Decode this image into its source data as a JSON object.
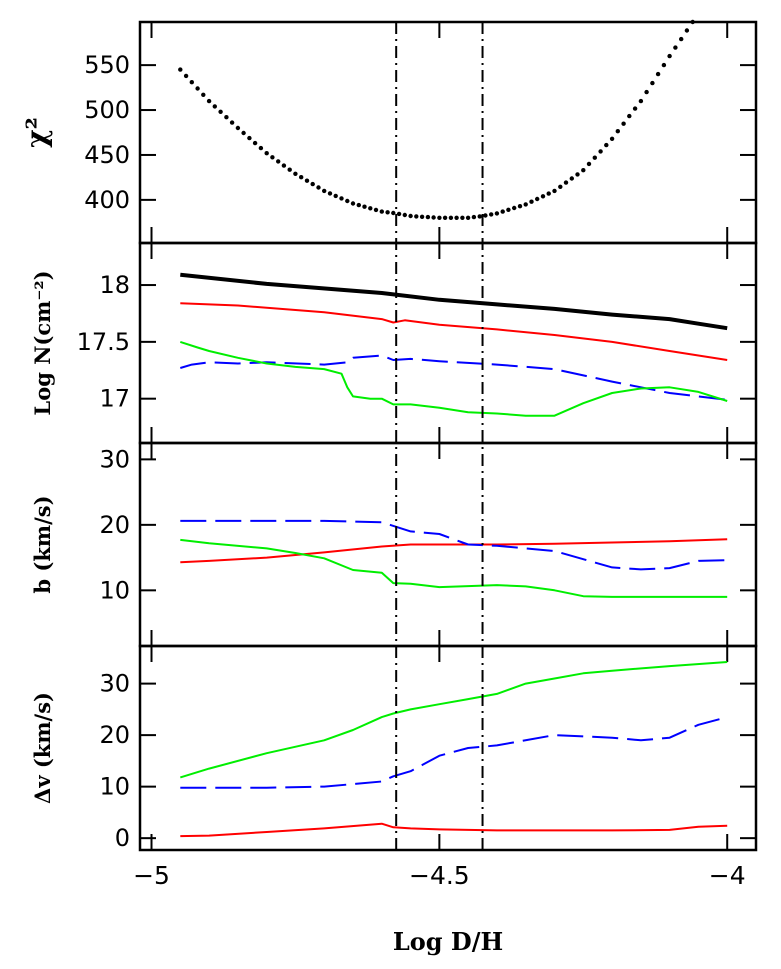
{
  "chart_data": {
    "type": "line",
    "xlabel": "Log D/H",
    "x_ticks": [
      -5,
      -4.5,
      -4
    ],
    "x_tick_labels": [
      "−5",
      "−4.5",
      "−4"
    ],
    "xlim": [
      -5.02,
      -3.95
    ],
    "vlines": [
      {
        "x": -4.575,
        "style": "dash-dot",
        "color": "#000000"
      },
      {
        "x": -4.425,
        "style": "dash-dot",
        "color": "#000000"
      }
    ],
    "panels": [
      {
        "id": "chi2",
        "ylabel": "χ²",
        "ylim": [
          352,
          598
        ],
        "y_ticks": [
          400,
          450,
          500,
          550
        ],
        "y_tick_labels": [
          "400",
          "450",
          "500",
          "550"
        ],
        "series": [
          {
            "style": "dotted",
            "color": "#000000",
            "dot_step": 0.01,
            "x": [
              -4.95,
              -4.9,
              -4.85,
              -4.8,
              -4.75,
              -4.7,
              -4.65,
              -4.6,
              -4.575,
              -4.55,
              -4.5,
              -4.45,
              -4.425,
              -4.4,
              -4.35,
              -4.3,
              -4.25,
              -4.2,
              -4.15,
              -4.1,
              -4.06
            ],
            "y": [
              545,
              510,
              480,
              452,
              429,
              410,
              396,
              387,
              385,
              382,
              380,
              380,
              382,
              385,
              395,
              410,
              433,
              468,
              510,
              560,
              598
            ]
          }
        ]
      },
      {
        "id": "logN",
        "ylabel": "Log N(cm⁻²)",
        "ylim": [
          16.61,
          18.37
        ],
        "y_ticks": [
          17,
          17.5,
          18
        ],
        "y_tick_labels": [
          "17",
          "17.5",
          "18"
        ],
        "series": [
          {
            "color": "#000000",
            "style": "solid",
            "width": 4,
            "x": [
              -4.95,
              -4.8,
              -4.6,
              -4.5,
              -4.4,
              -4.3,
              -4.2,
              -4.1,
              -4.05,
              -4.0
            ],
            "y": [
              18.09,
              18.01,
              17.93,
              17.87,
              17.83,
              17.79,
              17.74,
              17.7,
              17.66,
              17.62
            ]
          },
          {
            "color": "#ff0000",
            "style": "solid",
            "width": 2,
            "x": [
              -4.95,
              -4.85,
              -4.7,
              -4.6,
              -4.58,
              -4.56,
              -4.5,
              -4.4,
              -4.3,
              -4.2,
              -4.1,
              -4.0
            ],
            "y": [
              17.84,
              17.82,
              17.76,
              17.7,
              17.67,
              17.69,
              17.65,
              17.61,
              17.56,
              17.5,
              17.42,
              17.34
            ]
          },
          {
            "color": "#0000ff",
            "style": "dashed",
            "width": 2,
            "x": [
              -4.95,
              -4.93,
              -4.9,
              -4.85,
              -4.8,
              -4.7,
              -4.66,
              -4.65,
              -4.6,
              -4.58,
              -4.55,
              -4.5,
              -4.4,
              -4.3,
              -4.2,
              -4.1,
              -4.0
            ],
            "y": [
              17.27,
              17.3,
              17.32,
              17.31,
              17.32,
              17.3,
              17.32,
              17.36,
              17.38,
              17.34,
              17.35,
              17.33,
              17.3,
              17.26,
              17.15,
              17.05,
              16.99
            ]
          },
          {
            "color": "#00ee00",
            "style": "solid",
            "width": 2,
            "x": [
              -4.95,
              -4.92,
              -4.9,
              -4.85,
              -4.8,
              -4.75,
              -4.7,
              -4.67,
              -4.66,
              -4.65,
              -4.62,
              -4.6,
              -4.58,
              -4.55,
              -4.5,
              -4.45,
              -4.4,
              -4.35,
              -4.3,
              -4.25,
              -4.2,
              -4.15,
              -4.1,
              -4.05,
              -4.0
            ],
            "y": [
              17.5,
              17.45,
              17.42,
              17.36,
              17.31,
              17.28,
              17.26,
              17.22,
              17.1,
              17.02,
              17.0,
              17.0,
              16.95,
              16.95,
              16.92,
              16.88,
              16.87,
              16.85,
              16.85,
              16.96,
              17.05,
              17.09,
              17.1,
              17.06,
              16.98
            ]
          }
        ]
      },
      {
        "id": "b",
        "ylabel": "b (km/s)",
        "ylim": [
          1.5,
          32.5
        ],
        "y_ticks": [
          10,
          20,
          30
        ],
        "y_tick_labels": [
          "10",
          "20",
          "30"
        ],
        "series": [
          {
            "color": "#ff0000",
            "style": "solid",
            "width": 2,
            "x": [
              -4.95,
              -4.9,
              -4.8,
              -4.7,
              -4.6,
              -4.55,
              -4.5,
              -4.4,
              -4.3,
              -4.2,
              -4.1,
              -4.0
            ],
            "y": [
              14.3,
              14.5,
              15.0,
              15.8,
              16.7,
              17.0,
              17.0,
              17.0,
              17.1,
              17.3,
              17.5,
              17.8
            ]
          },
          {
            "color": "#0000ff",
            "style": "dashed",
            "width": 2,
            "x": [
              -4.95,
              -4.9,
              -4.8,
              -4.7,
              -4.6,
              -4.55,
              -4.5,
              -4.45,
              -4.4,
              -4.3,
              -4.2,
              -4.15,
              -4.1,
              -4.05,
              -4.0
            ],
            "y": [
              20.6,
              20.6,
              20.6,
              20.6,
              20.4,
              19.0,
              18.6,
              17.0,
              16.8,
              16.0,
              13.5,
              13.2,
              13.4,
              14.5,
              14.6
            ]
          },
          {
            "color": "#00ee00",
            "style": "solid",
            "width": 2,
            "x": [
              -4.95,
              -4.9,
              -4.8,
              -4.75,
              -4.7,
              -4.65,
              -4.6,
              -4.58,
              -4.55,
              -4.5,
              -4.4,
              -4.35,
              -4.3,
              -4.25,
              -4.2,
              -4.1,
              -4.0
            ],
            "y": [
              17.7,
              17.2,
              16.4,
              15.7,
              14.9,
              13.1,
              12.7,
              11.1,
              11.0,
              10.5,
              10.8,
              10.6,
              10.0,
              9.1,
              9.0,
              9.0,
              9.0
            ]
          }
        ]
      },
      {
        "id": "dv",
        "ylabel": "Δv (km/s)",
        "ylim": [
          -2.3,
          37.3
        ],
        "y_ticks": [
          0,
          10,
          20,
          30
        ],
        "y_tick_labels": [
          "0",
          "10",
          "20",
          "30"
        ],
        "series": [
          {
            "color": "#ff0000",
            "style": "solid",
            "width": 2,
            "x": [
              -4.95,
              -4.9,
              -4.8,
              -4.7,
              -4.6,
              -4.58,
              -4.55,
              -4.5,
              -4.4,
              -4.3,
              -4.2,
              -4.1,
              -4.05,
              -4.0
            ],
            "y": [
              0.4,
              0.5,
              1.2,
              1.9,
              2.8,
              2.1,
              1.9,
              1.7,
              1.5,
              1.5,
              1.5,
              1.6,
              2.2,
              2.4
            ]
          },
          {
            "color": "#0000ff",
            "style": "dashed",
            "width": 2,
            "x": [
              -4.95,
              -4.9,
              -4.8,
              -4.7,
              -4.65,
              -4.6,
              -4.58,
              -4.55,
              -4.5,
              -4.45,
              -4.4,
              -4.3,
              -4.2,
              -4.15,
              -4.1,
              -4.05,
              -4.0
            ],
            "y": [
              9.8,
              9.8,
              9.8,
              10.0,
              10.5,
              11.0,
              12.0,
              13.0,
              16.0,
              17.5,
              18.0,
              20.0,
              19.5,
              19.0,
              19.5,
              22.0,
              23.5
            ]
          },
          {
            "color": "#00ee00",
            "style": "solid",
            "width": 2,
            "x": [
              -4.95,
              -4.9,
              -4.8,
              -4.7,
              -4.65,
              -4.6,
              -4.58,
              -4.55,
              -4.5,
              -4.45,
              -4.4,
              -4.35,
              -4.3,
              -4.25,
              -4.2,
              -4.1,
              -4.0
            ],
            "y": [
              11.8,
              13.5,
              16.5,
              19.0,
              21.0,
              23.5,
              24.2,
              25.0,
              26.0,
              27.0,
              28.0,
              30.0,
              31.0,
              32.0,
              32.5,
              33.4,
              34.2
            ]
          }
        ]
      }
    ]
  }
}
